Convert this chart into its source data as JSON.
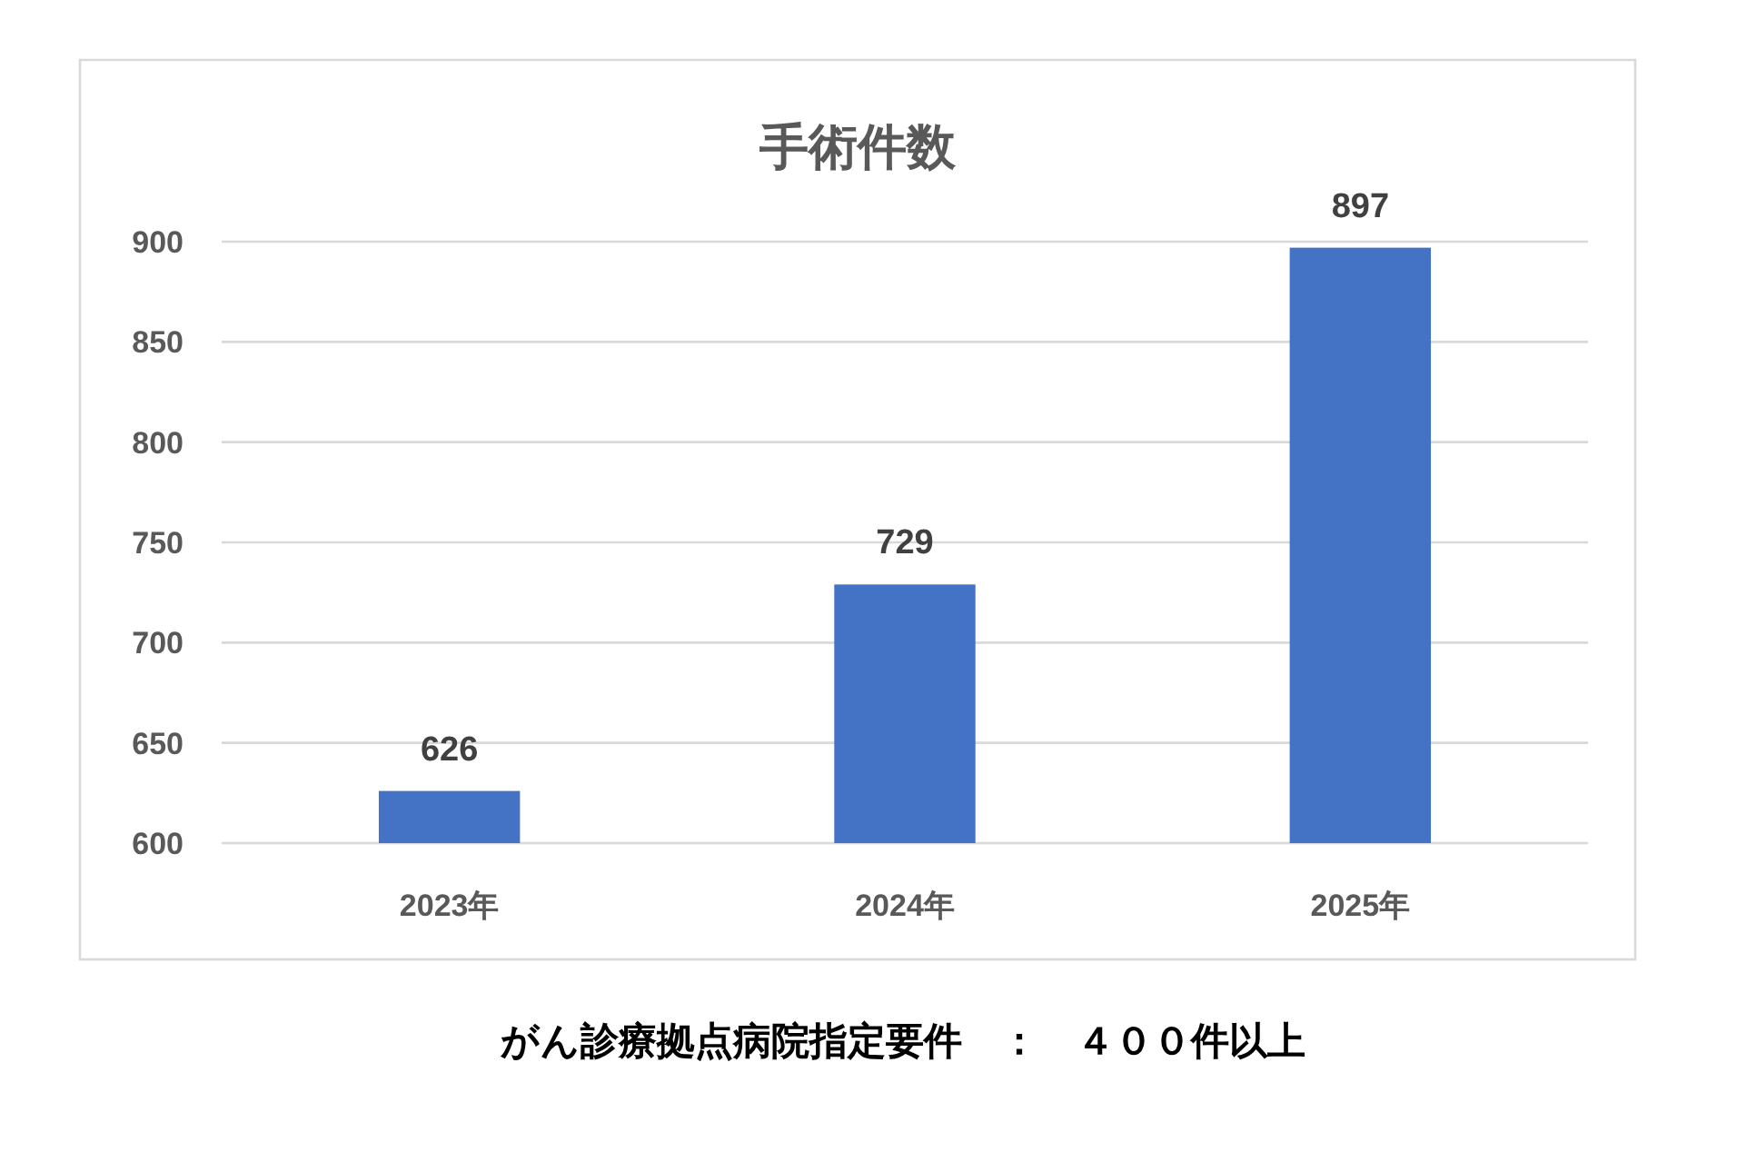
{
  "chart_data": {
    "type": "bar",
    "title": "手術件数",
    "categories": [
      "2023年",
      "2024年",
      "2025年"
    ],
    "values": [
      626,
      729,
      897
    ],
    "color": "#4472c4",
    "ylim": [
      600,
      900
    ],
    "yticks": [
      600,
      650,
      700,
      750,
      800,
      850,
      900
    ],
    "grid": "y",
    "data_labels": true,
    "annotations": [
      "がん診療拠点病院指定要件　：　４００件以上"
    ]
  }
}
